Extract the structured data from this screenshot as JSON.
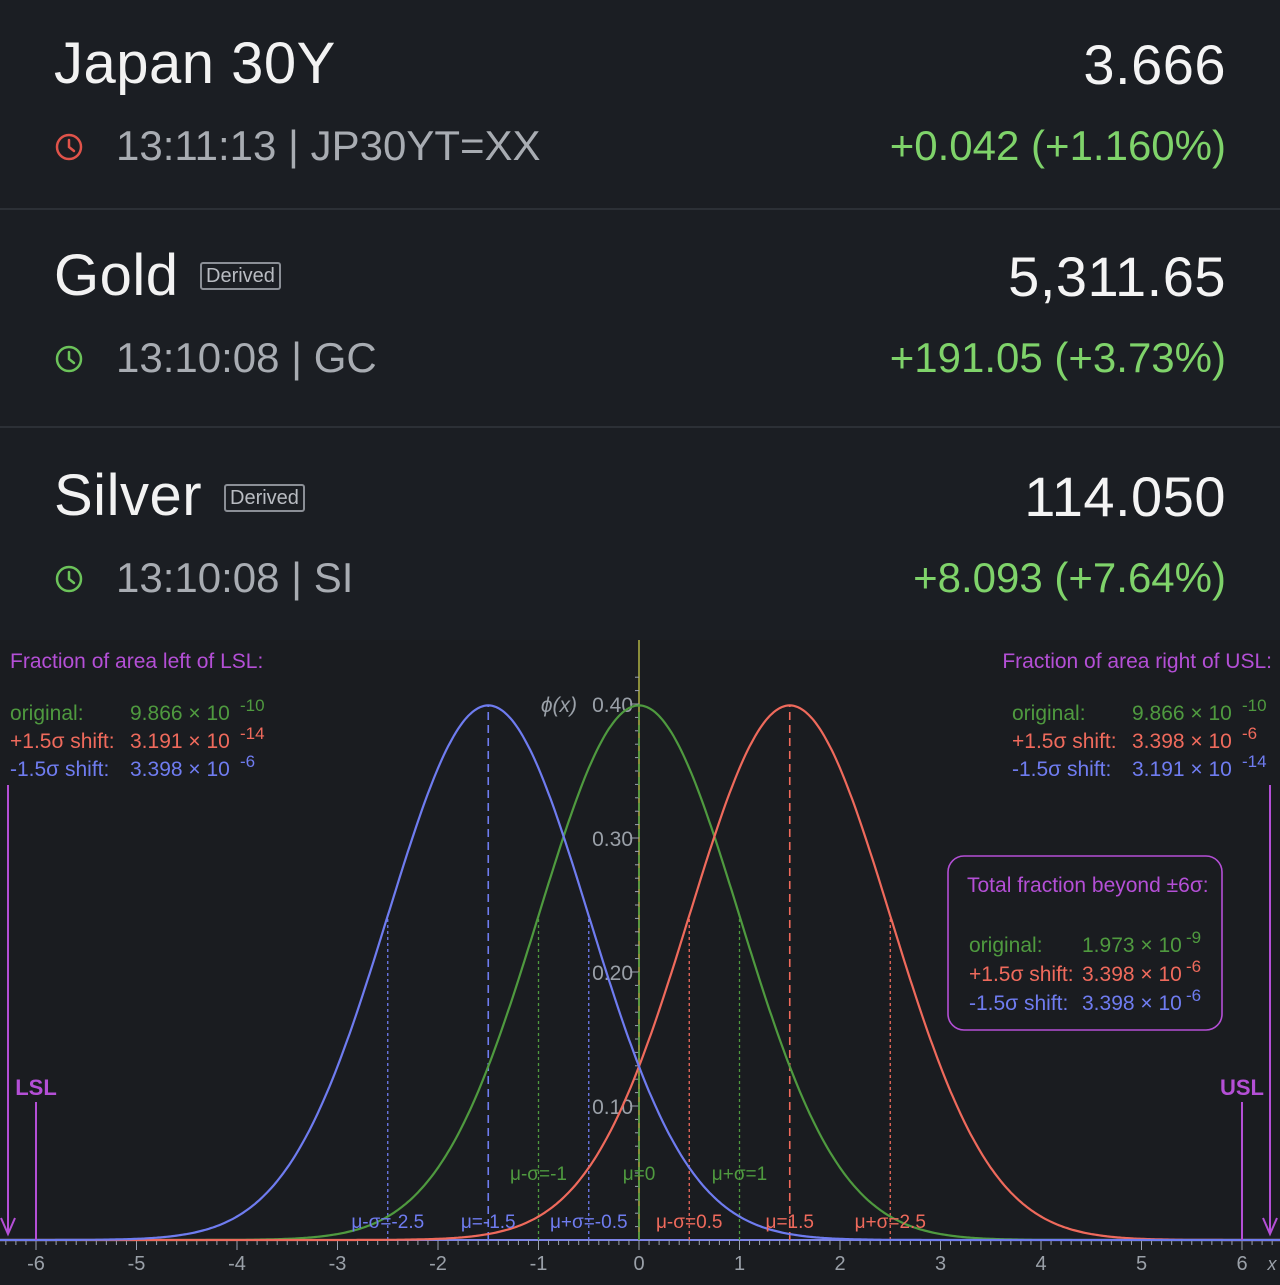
{
  "tickers": [
    {
      "name": "Japan 30Y",
      "badge": "",
      "price": "3.666",
      "time": "13:11:13",
      "symbol": "JP30YT=XX",
      "meta": "13:11:13 | JP30YT=XX",
      "change": "+0.042 (+1.160%)",
      "clock_color": "#e0534a",
      "change_color": "#7fd36a"
    },
    {
      "name": "Gold",
      "badge": "Derived",
      "price": "5,311.65",
      "time": "13:10:08",
      "symbol": "GC",
      "meta": "13:10:08 | GC",
      "change": "+191.05 (+3.73%)",
      "clock_color": "#6cc35a",
      "change_color": "#7fd36a"
    },
    {
      "name": "Silver",
      "badge": "Derived",
      "price": "114.050",
      "time": "13:10:08",
      "symbol": "SI",
      "meta": "13:10:08 | SI",
      "change": "+8.093 (+7.64%)",
      "clock_color": "#6cc35a",
      "change_color": "#7fd36a"
    }
  ],
  "chart_data": {
    "type": "line",
    "ylabel": "ϕ(x)",
    "xlabel": "x",
    "xlim": [
      -6.3,
      6.3
    ],
    "ylim": [
      0,
      0.42
    ],
    "xticks": [
      -6,
      -5,
      -4,
      -3,
      -2,
      -1,
      0,
      1,
      2,
      3,
      4,
      5,
      6
    ],
    "yticks": [
      0.1,
      0.2,
      0.3,
      0.4
    ],
    "ytick_labels": [
      "0.10",
      "0.20",
      "0.30",
      "0.40"
    ],
    "series": [
      {
        "name": "original",
        "mu": 0,
        "sigma": 1,
        "color": "#4f9a3f"
      },
      {
        "name": "+1.5σ shift",
        "mu": 1.5,
        "sigma": 1,
        "color": "#ef6a5c"
      },
      {
        "name": "-1.5σ shift",
        "mu": -1.5,
        "sigma": 1,
        "color": "#6f7cf0"
      }
    ],
    "marker_labels": [
      {
        "text": "μ-σ=-2.5",
        "x": -2.5,
        "color": "#6f7cf0"
      },
      {
        "text": "μ=-1.5",
        "x": -1.5,
        "color": "#6f7cf0"
      },
      {
        "text": "μ+σ=-0.5",
        "x": -0.5,
        "color": "#6f7cf0"
      },
      {
        "text": "μ-σ=-1",
        "x": -1,
        "color": "#4f9a3f"
      },
      {
        "text": "μ=0",
        "x": 0,
        "color": "#4f9a3f"
      },
      {
        "text": "μ+σ=1",
        "x": 1,
        "color": "#4f9a3f"
      },
      {
        "text": "μ-σ=0.5",
        "x": 0.5,
        "color": "#ef6a5c"
      },
      {
        "text": "μ=1.5",
        "x": 1.5,
        "color": "#ef6a5c"
      },
      {
        "text": "μ+σ=2.5",
        "x": 2.5,
        "color": "#ef6a5c"
      }
    ],
    "spec_limits": [
      {
        "text": "LSL",
        "x": -6
      },
      {
        "text": "USL",
        "x": 6
      }
    ],
    "left_box": {
      "title": "Fraction of area left of LSL:",
      "rows": [
        {
          "label": "original:",
          "mant": "9.866 × 10",
          "exp": "-10",
          "color": "#4f9a3f"
        },
        {
          "label": "+1.5σ shift:",
          "mant": "3.191 × 10",
          "exp": "-14",
          "color": "#ef6a5c"
        },
        {
          "label": "-1.5σ shift:",
          "mant": "3.398 × 10",
          "exp": "-6",
          "color": "#6f7cf0"
        }
      ]
    },
    "right_box": {
      "title": "Fraction of area right of USL:",
      "rows": [
        {
          "label": "original:",
          "mant": "9.866 × 10",
          "exp": "-10",
          "color": "#4f9a3f"
        },
        {
          "label": "+1.5σ shift:",
          "mant": "3.398 × 10",
          "exp": "-6",
          "color": "#ef6a5c"
        },
        {
          "label": "-1.5σ shift:",
          "mant": "3.191 × 10",
          "exp": "-14",
          "color": "#6f7cf0"
        }
      ]
    },
    "total_box": {
      "title": "Total fraction beyond ±6σ:",
      "rows": [
        {
          "label": "original:",
          "mant": "1.973 × 10",
          "exp": "-9",
          "color": "#4f9a3f"
        },
        {
          "label": "+1.5σ shift:",
          "mant": "3.398 × 10",
          "exp": "-6",
          "color": "#ef6a5c"
        },
        {
          "label": "-1.5σ shift:",
          "mant": "3.398 × 10",
          "exp": "-6",
          "color": "#6f7cf0"
        }
      ]
    },
    "accent_color": "#b44fd6"
  }
}
